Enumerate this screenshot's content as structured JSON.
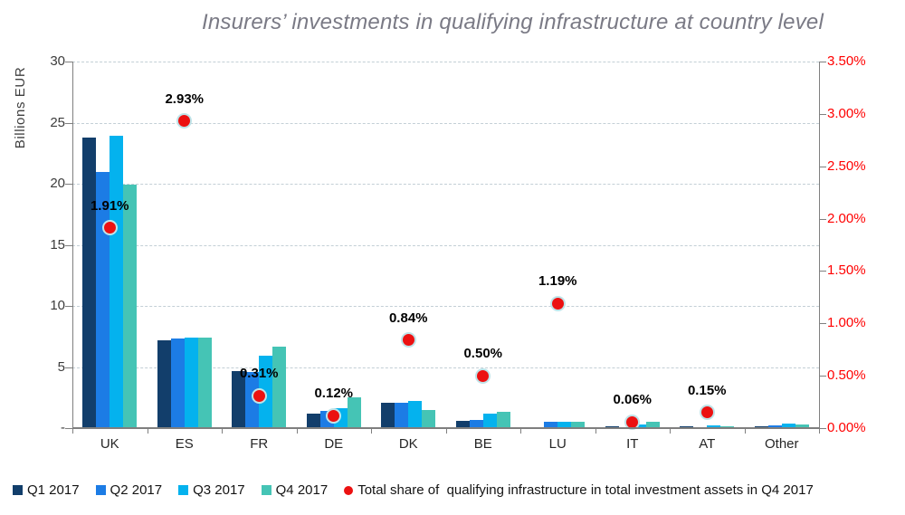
{
  "title": "Insurers’ investments in qualifying infrastructure at country level",
  "chart_data": {
    "type": "bar+scatter-combo",
    "title": "Insurers’ investments in qualifying infrastructure at country level",
    "categories": [
      "UK",
      "ES",
      "FR",
      "DE",
      "DK",
      "BE",
      "LU",
      "IT",
      "AT",
      "Other"
    ],
    "series": [
      {
        "name": "Q1 2017",
        "color": "#123E6B",
        "values": [
          23.8,
          7.2,
          4.7,
          1.2,
          2.1,
          0.6,
          0.1,
          0.17,
          0.12,
          0.18
        ]
      },
      {
        "name": "Q2 2017",
        "color": "#1C7CE5",
        "values": [
          21.0,
          7.3,
          4.6,
          1.4,
          2.05,
          0.7,
          0.55,
          0.1,
          0.07,
          0.2
        ]
      },
      {
        "name": "Q3 2017",
        "color": "#04B2EE",
        "values": [
          23.9,
          7.4,
          5.9,
          1.6,
          2.2,
          1.2,
          0.5,
          0.27,
          0.2,
          0.38
        ]
      },
      {
        "name": "Q4 2017",
        "color": "#45C4B5",
        "values": [
          19.9,
          7.4,
          6.7,
          2.5,
          1.5,
          1.3,
          0.55,
          0.54,
          0.17,
          0.28
        ]
      }
    ],
    "dot_series": {
      "name": "Total share of  qualifying infrastructure in total investment assets in Q4 2017",
      "color": "#EC1111",
      "values_pct": [
        1.91,
        2.93,
        0.31,
        0.12,
        0.84,
        0.5,
        1.19,
        0.06,
        0.15,
        null
      ],
      "labels": [
        "1.91%",
        "2.93%",
        "0.31%",
        "0.12%",
        "0.84%",
        "0.50%",
        "1.19%",
        "0.06%",
        "0.15%",
        ""
      ]
    },
    "left_axis": {
      "label": "Billions EUR",
      "max": 30,
      "tick_values": [
        30,
        25,
        20,
        15,
        10,
        5,
        0
      ],
      "tick_labels": [
        "30",
        "25",
        "20",
        "15",
        "10",
        "5",
        "-"
      ]
    },
    "right_axis": {
      "max": 3.5,
      "color": "#FF0000",
      "tick_values": [
        3.5,
        3.0,
        2.5,
        2.0,
        1.5,
        1.0,
        0.5,
        0.0
      ],
      "tick_labels": [
        "3.50%",
        "3.00%",
        "2.50%",
        "2.00%",
        "1.50%",
        "1.00%",
        "0.50%",
        "0.00%"
      ]
    },
    "grid": true,
    "legend_position": "bottom"
  }
}
